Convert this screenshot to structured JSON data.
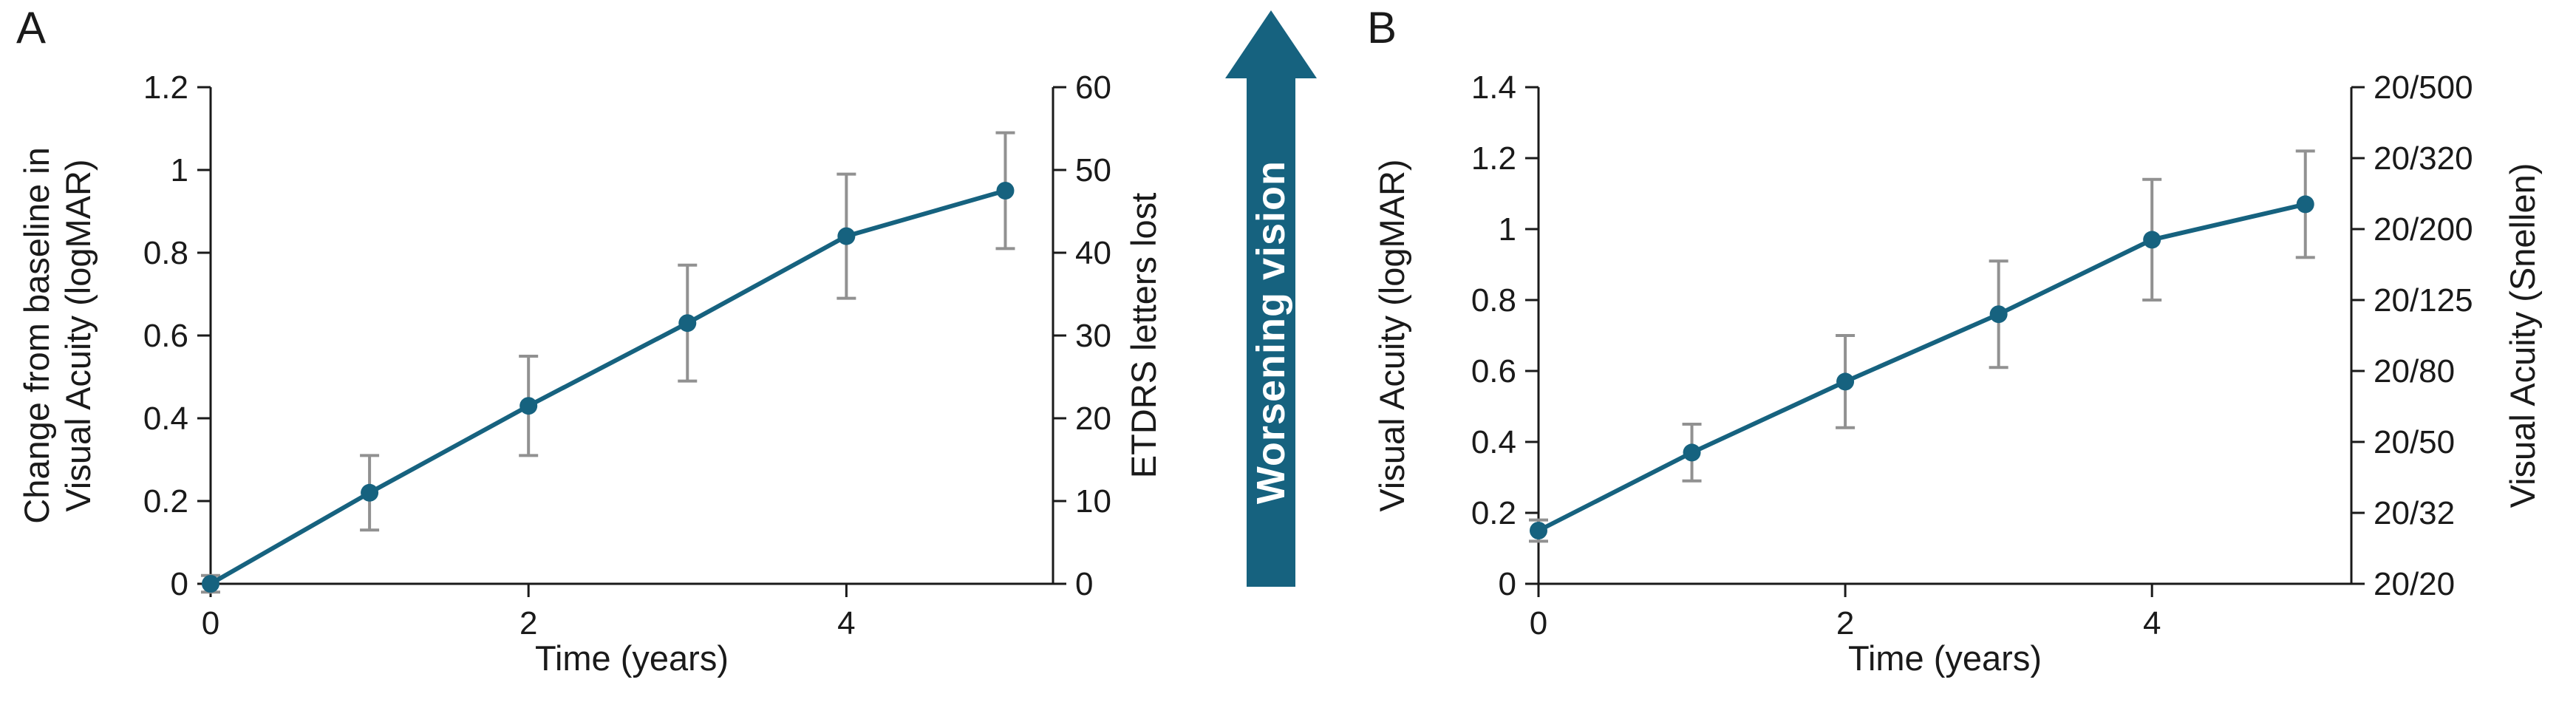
{
  "figure": {
    "background": "#ffffff",
    "accent_color": "#16627f",
    "error_bar_color": "#919191",
    "axis_color": "#1a1a1a"
  },
  "arrow": {
    "label": "Worsening vision"
  },
  "chart_data": [
    {
      "panel_label": "A",
      "type": "line",
      "x": [
        0,
        1,
        2,
        3,
        4,
        5
      ],
      "y": [
        0.0,
        0.22,
        0.43,
        0.63,
        0.84,
        0.95
      ],
      "y_err": [
        0.02,
        0.09,
        0.12,
        0.14,
        0.15,
        0.14
      ],
      "xlim": [
        0,
        5.3
      ],
      "ylim": [
        0,
        1.2
      ],
      "ylim_right": [
        0,
        60
      ],
      "xlabel": "Time (years)",
      "ylabel_left_lines": [
        "Change from baseline in",
        "Visual Acuity (logMAR)"
      ],
      "ylabel_right": "ETDRS letters lost",
      "xticks": {
        "values": [
          0,
          2,
          4
        ],
        "labels": [
          "0",
          "2",
          "4"
        ]
      },
      "yticks_left": {
        "values": [
          0,
          0.2,
          0.4,
          0.6,
          0.8,
          1.0,
          1.2
        ],
        "labels": [
          "0",
          "0.2",
          "0.4",
          "0.6",
          "0.8",
          "1",
          "1.2"
        ]
      },
      "yticks_right": {
        "values": [
          0,
          0.2,
          0.4,
          0.6,
          0.8,
          1.0,
          1.2
        ],
        "labels": [
          "0",
          "10",
          "20",
          "30",
          "40",
          "50",
          "60"
        ]
      },
      "grid": false,
      "legend": null
    },
    {
      "panel_label": "B",
      "type": "line",
      "x": [
        0,
        1,
        2,
        3,
        4,
        5
      ],
      "y": [
        0.15,
        0.37,
        0.57,
        0.76,
        0.97,
        1.07
      ],
      "y_err": [
        0.03,
        0.08,
        0.13,
        0.15,
        0.17,
        0.15
      ],
      "xlim": [
        0,
        5.3
      ],
      "ylim": [
        0,
        1.4
      ],
      "xlabel": "Time (years)",
      "ylabel_left_lines": [
        "Visual Acuity (logMAR)"
      ],
      "ylabel_right": "Visual Acuity (Snellen)",
      "xticks": {
        "values": [
          0,
          2,
          4
        ],
        "labels": [
          "0",
          "2",
          "4"
        ]
      },
      "yticks_left": {
        "values": [
          0,
          0.2,
          0.4,
          0.6,
          0.8,
          1.0,
          1.2,
          1.4
        ],
        "labels": [
          "0",
          "0.2",
          "0.4",
          "0.6",
          "0.8",
          "1",
          "1.2",
          "1.4"
        ]
      },
      "yticks_right": {
        "values": [
          0,
          0.2,
          0.4,
          0.6,
          0.8,
          1.0,
          1.2,
          1.4
        ],
        "labels": [
          "20/20",
          "20/32",
          "20/50",
          "20/80",
          "20/125",
          "20/200",
          "20/320",
          "20/500"
        ]
      },
      "grid": false,
      "legend": null
    }
  ]
}
